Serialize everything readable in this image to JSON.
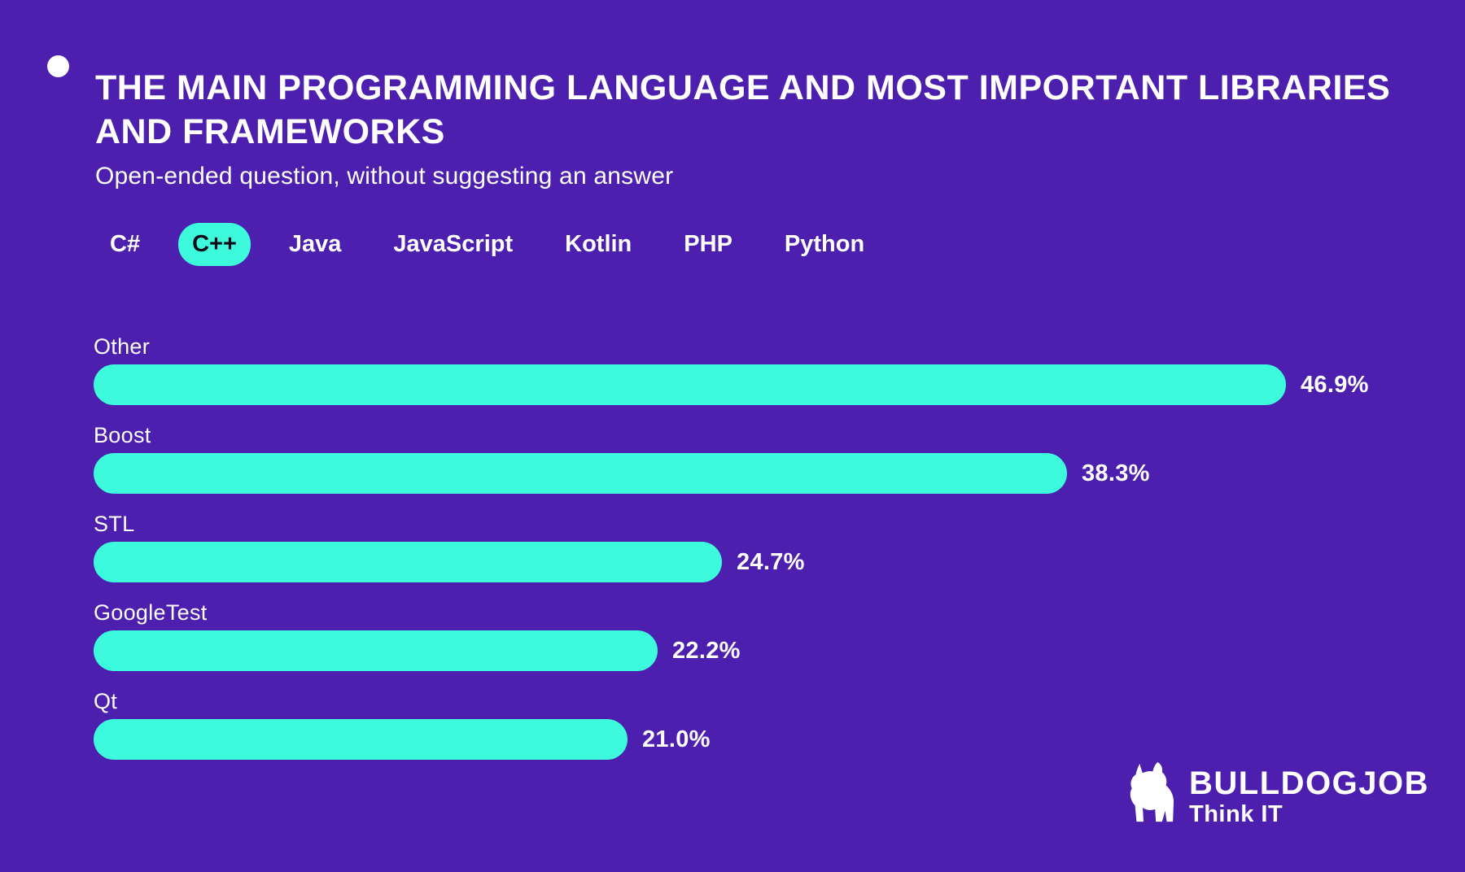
{
  "colors": {
    "background": "#4C1FAF",
    "accent_teal": "#3CFADB",
    "text_white": "#FFFFFF",
    "active_tab_text": "#0B0B18"
  },
  "header": {
    "bullet_icon": "dot-icon",
    "title_line1": "THE MAIN PROGRAMMING LANGUAGE AND MOST IMPORTANT LIBRARIES",
    "title_line2": "AND FRAMEWORKS",
    "subtitle": "Open-ended question, without suggesting an answer"
  },
  "tabs": [
    {
      "label": "C#",
      "active": false
    },
    {
      "label": "C++",
      "active": true
    },
    {
      "label": "Java",
      "active": false
    },
    {
      "label": "JavaScript",
      "active": false
    },
    {
      "label": "Kotlin",
      "active": false
    },
    {
      "label": "PHP",
      "active": false
    },
    {
      "label": "Python",
      "active": false
    }
  ],
  "chart_data": {
    "type": "bar",
    "orientation": "horizontal",
    "title": "The main programming language and most important libraries and frameworks",
    "subtitle": "Open-ended question, without suggesting an answer",
    "selected_language": "C++",
    "categories": [
      "Other",
      "Boost",
      "STL",
      "GoogleTest",
      "Qt"
    ],
    "values": [
      46.9,
      38.3,
      24.7,
      22.2,
      21.0
    ],
    "value_labels": [
      "46.9%",
      "38.3%",
      "24.7%",
      "22.2%",
      "21.0%"
    ],
    "scale_max": 46.9,
    "unit": "%",
    "bar_color": "#3CFADB",
    "grid": false,
    "legend": "none"
  },
  "logo": {
    "icon": "bulldog-icon",
    "brand": "BULLDOGJOB",
    "tagline": "Think IT"
  }
}
